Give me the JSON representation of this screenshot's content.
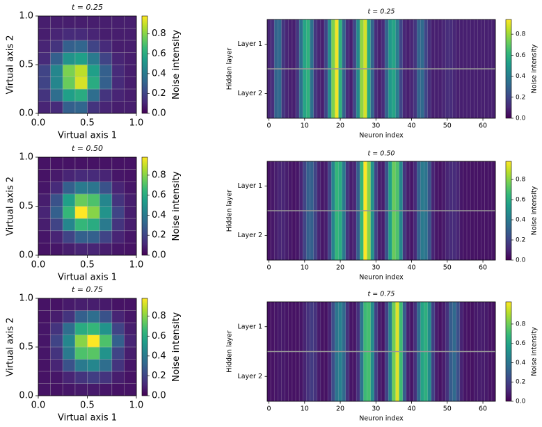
{
  "chart_data": [
    {
      "type": "heatmap",
      "title": "t = 0.25",
      "title_color": "#3e4989",
      "xlabel": "Virtual axis 1",
      "ylabel": "Virtual axis 2",
      "xlim": [
        0,
        1
      ],
      "ylim": [
        0,
        1
      ],
      "xticks": [
        {
          "value": 0,
          "label": "0.0"
        },
        0.5,
        {
          "value": 1,
          "label": "1.0"
        }
      ],
      "yticks": [
        {
          "value": 0,
          "label": "0.0"
        },
        0.5,
        {
          "value": 1,
          "label": "1.0"
        }
      ],
      "values": [
        [
          0.1,
          0.12,
          0.3,
          0.32,
          0.15,
          0.1,
          0.08,
          0.08
        ],
        [
          0.15,
          0.35,
          0.55,
          0.6,
          0.35,
          0.15,
          0.1,
          0.08
        ],
        [
          0.2,
          0.45,
          0.75,
          0.92,
          0.6,
          0.3,
          0.12,
          0.08
        ],
        [
          0.2,
          0.45,
          0.78,
          0.88,
          0.55,
          0.3,
          0.12,
          0.08
        ],
        [
          0.12,
          0.3,
          0.5,
          0.55,
          0.4,
          0.2,
          0.1,
          0.08
        ],
        [
          0.1,
          0.15,
          0.3,
          0.32,
          0.2,
          0.12,
          0.08,
          0.08
        ],
        [
          0.08,
          0.1,
          0.12,
          0.12,
          0.1,
          0.08,
          0.08,
          0.08
        ],
        [
          0.08,
          0.08,
          0.08,
          0.08,
          0.08,
          0.08,
          0.08,
          0.08
        ]
      ],
      "colorbar_label": "Noise intensity",
      "clim": [
        0,
        0.98
      ],
      "cticks": [
        {
          "value": 0,
          "label": "0.0"
        },
        0.2,
        0.4,
        0.6,
        0.8
      ]
    },
    {
      "type": "heatstrip",
      "title": "t = 0.25",
      "title_color": "#3e4989",
      "xlabel": "Neuron index",
      "ylabel": "Hidden layer",
      "categories": [
        "Layer 1",
        "Layer 2"
      ],
      "xlim": [
        -0.5,
        63.5
      ],
      "xticks": [
        0,
        10,
        20,
        30,
        40,
        50,
        60
      ],
      "values": [
        [
          0.1,
          0.12,
          0.3,
          0.32,
          0.15,
          0.1,
          0.08,
          0.08,
          0.15,
          0.35,
          0.55,
          0.6,
          0.35,
          0.15,
          0.1,
          0.08,
          0.2,
          0.45,
          0.75,
          0.92,
          0.6,
          0.3,
          0.12,
          0.08,
          0.2,
          0.45,
          0.78,
          0.88,
          0.55,
          0.3,
          0.12,
          0.08,
          0.12,
          0.3,
          0.5,
          0.55,
          0.4,
          0.2,
          0.1,
          0.08,
          0.1,
          0.15,
          0.3,
          0.32,
          0.2,
          0.12,
          0.08,
          0.08,
          0.08,
          0.1,
          0.12,
          0.12,
          0.1,
          0.08,
          0.08,
          0.08,
          0.08,
          0.08,
          0.08,
          0.08,
          0.08,
          0.08,
          0.08,
          0.08
        ],
        [
          0.1,
          0.12,
          0.3,
          0.32,
          0.15,
          0.1,
          0.08,
          0.08,
          0.15,
          0.35,
          0.55,
          0.6,
          0.35,
          0.15,
          0.1,
          0.08,
          0.2,
          0.45,
          0.75,
          0.92,
          0.6,
          0.3,
          0.12,
          0.08,
          0.2,
          0.45,
          0.78,
          0.88,
          0.55,
          0.3,
          0.12,
          0.08,
          0.12,
          0.3,
          0.5,
          0.55,
          0.4,
          0.2,
          0.1,
          0.08,
          0.1,
          0.15,
          0.3,
          0.32,
          0.2,
          0.12,
          0.08,
          0.08,
          0.08,
          0.1,
          0.12,
          0.12,
          0.1,
          0.08,
          0.08,
          0.08,
          0.08,
          0.08,
          0.08,
          0.08,
          0.08,
          0.08,
          0.08,
          0.08
        ]
      ],
      "colorbar_label": "Noise intensity",
      "clim": [
        0,
        0.94
      ],
      "cticks": [
        {
          "value": 0,
          "label": "0.0"
        },
        0.2,
        0.4,
        0.6,
        0.8
      ]
    },
    {
      "type": "heatmap",
      "title": "t = 0.50",
      "title_color": "#21918c",
      "xlabel": "Virtual axis 1",
      "ylabel": "Virtual axis 2",
      "xlim": [
        0,
        1
      ],
      "ylim": [
        0,
        1
      ],
      "xticks": [
        {
          "value": 0,
          "label": "0.0"
        },
        0.5,
        {
          "value": 1,
          "label": "1.0"
        }
      ],
      "yticks": [
        {
          "value": 0,
          "label": "0.0"
        },
        0.5,
        {
          "value": 1,
          "label": "1.0"
        }
      ],
      "values": [
        [
          0.05,
          0.06,
          0.08,
          0.1,
          0.1,
          0.08,
          0.06,
          0.05
        ],
        [
          0.06,
          0.1,
          0.2,
          0.3,
          0.3,
          0.2,
          0.1,
          0.06
        ],
        [
          0.08,
          0.2,
          0.45,
          0.65,
          0.6,
          0.4,
          0.15,
          0.08
        ],
        [
          0.1,
          0.3,
          0.65,
          0.98,
          0.8,
          0.5,
          0.2,
          0.08
        ],
        [
          0.08,
          0.25,
          0.55,
          0.75,
          0.7,
          0.45,
          0.15,
          0.08
        ],
        [
          0.06,
          0.12,
          0.3,
          0.4,
          0.38,
          0.25,
          0.1,
          0.06
        ],
        [
          0.05,
          0.07,
          0.1,
          0.12,
          0.12,
          0.1,
          0.06,
          0.05
        ],
        [
          0.05,
          0.05,
          0.05,
          0.05,
          0.05,
          0.05,
          0.05,
          0.05
        ]
      ],
      "colorbar_label": "Noise intensity",
      "clim": [
        0,
        0.98
      ],
      "cticks": [
        {
          "value": 0,
          "label": "0.0"
        },
        0.2,
        0.4,
        0.6,
        0.8
      ]
    },
    {
      "type": "heatstrip",
      "title": "t = 0.50",
      "title_color": "#21918c",
      "xlabel": "Neuron index",
      "ylabel": "Hidden layer",
      "categories": [
        "Layer 1",
        "Layer 2"
      ],
      "xlim": [
        -0.5,
        63.5
      ],
      "xticks": [
        0,
        10,
        20,
        30,
        40,
        50,
        60
      ],
      "values": [
        [
          0.05,
          0.06,
          0.08,
          0.1,
          0.1,
          0.08,
          0.06,
          0.05,
          0.06,
          0.1,
          0.2,
          0.3,
          0.3,
          0.2,
          0.1,
          0.06,
          0.08,
          0.2,
          0.45,
          0.65,
          0.6,
          0.4,
          0.15,
          0.08,
          0.1,
          0.3,
          0.65,
          0.98,
          0.8,
          0.5,
          0.2,
          0.08,
          0.08,
          0.25,
          0.55,
          0.75,
          0.7,
          0.45,
          0.15,
          0.08,
          0.06,
          0.12,
          0.3,
          0.4,
          0.38,
          0.25,
          0.1,
          0.06,
          0.05,
          0.07,
          0.1,
          0.12,
          0.12,
          0.1,
          0.06,
          0.05,
          0.05,
          0.05,
          0.05,
          0.05,
          0.05,
          0.05,
          0.05,
          0.05
        ],
        [
          0.05,
          0.06,
          0.08,
          0.1,
          0.1,
          0.08,
          0.06,
          0.05,
          0.06,
          0.1,
          0.2,
          0.3,
          0.3,
          0.2,
          0.1,
          0.06,
          0.08,
          0.2,
          0.45,
          0.65,
          0.6,
          0.4,
          0.15,
          0.08,
          0.1,
          0.3,
          0.65,
          0.98,
          0.8,
          0.5,
          0.2,
          0.08,
          0.08,
          0.25,
          0.55,
          0.75,
          0.7,
          0.45,
          0.15,
          0.08,
          0.06,
          0.12,
          0.3,
          0.4,
          0.38,
          0.25,
          0.1,
          0.06,
          0.05,
          0.07,
          0.1,
          0.12,
          0.12,
          0.1,
          0.06,
          0.05,
          0.05,
          0.05,
          0.05,
          0.05,
          0.05,
          0.05,
          0.05,
          0.05
        ]
      ],
      "colorbar_label": "Noise intensity",
      "clim": [
        0,
        0.98
      ],
      "cticks": [
        {
          "value": 0,
          "label": "0.0"
        },
        0.2,
        0.4,
        0.6,
        0.8
      ]
    },
    {
      "type": "heatmap",
      "title": "t = 0.75",
      "title_color": "#2eaa6e",
      "xlabel": "Virtual axis 1",
      "ylabel": "Virtual axis 2",
      "xlim": [
        0,
        1
      ],
      "ylim": [
        0,
        1
      ],
      "xticks": [
        {
          "value": 0,
          "label": "0.0"
        },
        0.5,
        {
          "value": 1,
          "label": "1.0"
        }
      ],
      "yticks": [
        {
          "value": 0,
          "label": "0.0"
        },
        0.5,
        {
          "value": 1,
          "label": "1.0"
        }
      ],
      "values": [
        [
          0.05,
          0.05,
          0.06,
          0.07,
          0.07,
          0.06,
          0.05,
          0.05
        ],
        [
          0.05,
          0.06,
          0.1,
          0.15,
          0.18,
          0.15,
          0.08,
          0.05
        ],
        [
          0.05,
          0.1,
          0.25,
          0.4,
          0.45,
          0.35,
          0.15,
          0.06
        ],
        [
          0.06,
          0.15,
          0.4,
          0.7,
          0.72,
          0.5,
          0.2,
          0.08
        ],
        [
          0.06,
          0.2,
          0.45,
          0.8,
          0.98,
          0.7,
          0.3,
          0.1
        ],
        [
          0.06,
          0.15,
          0.35,
          0.6,
          0.65,
          0.5,
          0.2,
          0.08
        ],
        [
          0.05,
          0.08,
          0.15,
          0.3,
          0.35,
          0.25,
          0.1,
          0.06
        ],
        [
          0.05,
          0.05,
          0.07,
          0.08,
          0.08,
          0.07,
          0.05,
          0.05
        ]
      ],
      "colorbar_label": "Noise intensity",
      "clim": [
        0,
        0.98
      ],
      "cticks": [
        {
          "value": 0,
          "label": "0.0"
        },
        0.2,
        0.4,
        0.6,
        0.8
      ]
    },
    {
      "type": "heatstrip",
      "title": "t = 0.75",
      "title_color": "#2eaa6e",
      "xlabel": "Neuron index",
      "ylabel": "Hidden layer",
      "categories": [
        "Layer 1",
        "Layer 2"
      ],
      "xlim": [
        -0.5,
        63.5
      ],
      "xticks": [
        0,
        10,
        20,
        30,
        40,
        50,
        60
      ],
      "values": [
        [
          0.05,
          0.05,
          0.06,
          0.07,
          0.07,
          0.06,
          0.05,
          0.05,
          0.05,
          0.06,
          0.1,
          0.15,
          0.18,
          0.15,
          0.08,
          0.05,
          0.05,
          0.1,
          0.25,
          0.4,
          0.45,
          0.35,
          0.15,
          0.06,
          0.06,
          0.15,
          0.4,
          0.7,
          0.72,
          0.5,
          0.2,
          0.08,
          0.06,
          0.2,
          0.45,
          0.8,
          0.98,
          0.7,
          0.3,
          0.1,
          0.06,
          0.15,
          0.35,
          0.6,
          0.65,
          0.5,
          0.2,
          0.08,
          0.05,
          0.08,
          0.15,
          0.3,
          0.35,
          0.25,
          0.1,
          0.06,
          0.05,
          0.05,
          0.07,
          0.08,
          0.08,
          0.07,
          0.05,
          0.05
        ],
        [
          0.05,
          0.05,
          0.06,
          0.07,
          0.07,
          0.06,
          0.05,
          0.05,
          0.05,
          0.06,
          0.1,
          0.15,
          0.18,
          0.15,
          0.08,
          0.05,
          0.05,
          0.1,
          0.25,
          0.4,
          0.45,
          0.35,
          0.15,
          0.06,
          0.06,
          0.15,
          0.4,
          0.7,
          0.72,
          0.5,
          0.2,
          0.08,
          0.06,
          0.2,
          0.45,
          0.8,
          0.98,
          0.7,
          0.3,
          0.1,
          0.06,
          0.15,
          0.35,
          0.6,
          0.65,
          0.5,
          0.2,
          0.08,
          0.05,
          0.08,
          0.15,
          0.3,
          0.35,
          0.25,
          0.1,
          0.06,
          0.05,
          0.05,
          0.07,
          0.08,
          0.08,
          0.07,
          0.05,
          0.05
        ]
      ],
      "colorbar_label": "Noise intensity",
      "clim": [
        0,
        1.03
      ],
      "cticks": [
        {
          "value": 0,
          "label": "0.0"
        },
        0.2,
        0.4,
        0.6,
        0.8
      ]
    }
  ]
}
